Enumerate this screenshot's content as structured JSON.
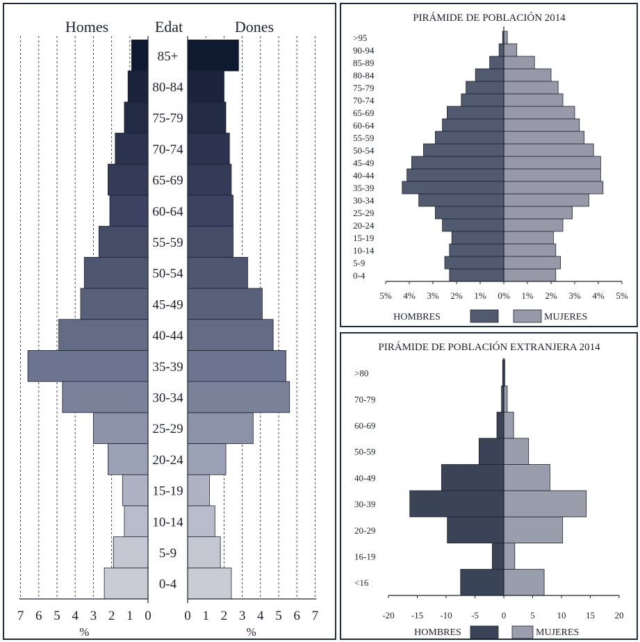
{
  "chart_data": [
    {
      "type": "bar",
      "orientation": "population-pyramid",
      "left_title": "Homes",
      "center_title": "Edat",
      "right_title": "Dones",
      "categories": [
        "0-4",
        "5-9",
        "10-14",
        "15-19",
        "20-24",
        "25-29",
        "30-34",
        "35-39",
        "40-44",
        "45-49",
        "50-54",
        "55-59",
        "60-64",
        "65-69",
        "70-74",
        "75-79",
        "80-84",
        "85+"
      ],
      "series": [
        {
          "name": "Homes",
          "values": [
            2.4,
            1.9,
            1.3,
            1.4,
            2.2,
            3.0,
            4.7,
            6.6,
            4.9,
            3.7,
            3.5,
            2.7,
            2.1,
            2.2,
            1.8,
            1.3,
            1.1,
            0.9
          ]
        },
        {
          "name": "Dones",
          "values": [
            2.4,
            1.8,
            1.5,
            1.2,
            2.1,
            3.6,
            5.6,
            5.4,
            4.7,
            4.1,
            3.3,
            2.5,
            2.5,
            2.4,
            2.3,
            2.1,
            2.0,
            2.8
          ]
        }
      ],
      "xticks_left": [
        "7",
        "6",
        "5",
        "4",
        "3",
        "2",
        "1",
        "0"
      ],
      "xticks_right": [
        "0",
        "1",
        "2",
        "3",
        "4",
        "5",
        "6",
        "7"
      ],
      "xlim": [
        0,
        7
      ],
      "xlabel": "%",
      "grid": true,
      "colors": [
        "#cbcbd6",
        "#c4c6d2",
        "#b9bcca",
        "#aeb2c2",
        "#9ca2b5",
        "#8c93a8",
        "#7a8299",
        "#6c7490",
        "#636b85",
        "#58607a",
        "#4e5670",
        "#444c66",
        "#3b4360",
        "#333b56",
        "#2c334e",
        "#232a44",
        "#1c233c",
        "#0f1a30"
      ]
    },
    {
      "type": "bar",
      "orientation": "population-pyramid",
      "title": "PIRÁMIDE DE POBLACIÓN 2014",
      "categories": [
        "0-4",
        "5-9",
        "10-14",
        "15-19",
        "20-24",
        "25-29",
        "30-34",
        "35-39",
        "40-44",
        "45-49",
        "50-54",
        "55-59",
        "60-64",
        "65-69",
        "70-74",
        "75-79",
        "80-84",
        "85-89",
        "90-94",
        ">95"
      ],
      "series": [
        {
          "name": "HOMBRES",
          "values": [
            2.3,
            2.5,
            2.3,
            2.2,
            2.6,
            2.9,
            3.6,
            4.3,
            4.1,
            3.9,
            3.4,
            2.9,
            2.6,
            2.4,
            1.8,
            1.6,
            1.2,
            0.6,
            0.2,
            0.05
          ]
        },
        {
          "name": "MUJERES",
          "values": [
            2.2,
            2.4,
            2.2,
            2.1,
            2.5,
            2.9,
            3.6,
            4.2,
            4.1,
            4.1,
            3.8,
            3.4,
            3.2,
            3.0,
            2.5,
            2.3,
            2.0,
            1.3,
            0.55,
            0.15
          ]
        }
      ],
      "xticks": [
        "5%",
        "4%",
        "3%",
        "2%",
        "1%",
        "0%",
        "1%",
        "2%",
        "3%",
        "4%",
        "5%"
      ],
      "xlim": [
        -5,
        5
      ],
      "grid": false,
      "colors": {
        "hombres": "#515a6e",
        "mujeres": "#9799a8"
      }
    },
    {
      "type": "bar",
      "orientation": "population-pyramid",
      "title": "PIRÁMIDE DE POBLACIÓN EXTRANJERA 2014",
      "categories": [
        "<16",
        "16-19",
        "20-29",
        "30-39",
        "40-49",
        "50-59",
        "60-69",
        "70-79",
        ">80"
      ],
      "series": [
        {
          "name": "HOMBRES",
          "values": [
            -7.5,
            -2.0,
            -9.8,
            -16.3,
            -10.8,
            -4.3,
            -1.2,
            -0.4,
            -0.2
          ]
        },
        {
          "name": "MUJERES",
          "values": [
            7.0,
            1.9,
            10.2,
            14.3,
            8.0,
            4.3,
            1.7,
            0.6,
            0.2
          ]
        }
      ],
      "xticks": [
        "-20",
        "-15",
        "-10",
        "-5",
        "0",
        "5",
        "10",
        "15",
        "20"
      ],
      "xlim": [
        -20,
        20
      ],
      "grid": false,
      "colors": {
        "hombres": "#3b4356",
        "mujeres": "#9a9dab"
      }
    }
  ]
}
